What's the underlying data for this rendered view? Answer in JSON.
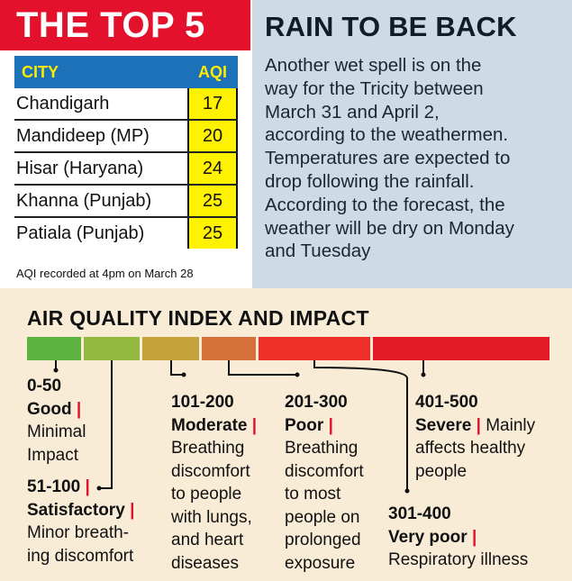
{
  "top5": {
    "title": "THE TOP 5",
    "columns": [
      "CITY",
      "AQI"
    ],
    "rows": [
      {
        "city": "Chandigarh",
        "aqi": "17"
      },
      {
        "city": "Mandideep (MP)",
        "aqi": "20"
      },
      {
        "city": "Hisar (Haryana)",
        "aqi": "24"
      },
      {
        "city": "Khanna (Punjab)",
        "aqi": "25"
      },
      {
        "city": "Patiala (Punjab)",
        "aqi": "25"
      }
    ],
    "note": "AQI recorded at 4pm on March 28"
  },
  "rain": {
    "title": "RAIN TO BE BACK",
    "lines": [
      "Another wet spell is on the",
      "way for the Tricity between",
      "March 31 and April 2,",
      "according to the weathermen.",
      "Temperatures are expected to",
      "drop following the rainfall.",
      "According to the forecast, the",
      "weather will be dry on Monday",
      "and Tuesday"
    ]
  },
  "impact": {
    "title": "AIR QUALITY INDEX AND IMPACT",
    "segment_colors": [
      "#5eb33f",
      "#93b93e",
      "#c5a23a",
      "#d7713a",
      "#ee2e28",
      "#e31a23"
    ],
    "categories": [
      {
        "range": "0-50",
        "name": "Good",
        "sep": "|",
        "desc": [
          "Minimal",
          "Impact"
        ]
      },
      {
        "range": "51-100",
        "name": "Satisfactory",
        "sep": "|",
        "desc": [
          "Minor breath-",
          "ing discomfort"
        ]
      },
      {
        "range": "101-200",
        "name": "Moderate",
        "sep": "|",
        "desc": [
          "Breathing",
          "discomfort",
          "to people",
          "with lungs,",
          "and heart",
          "diseases"
        ]
      },
      {
        "range": "201-300",
        "name": "Poor",
        "sep": "|",
        "desc": [
          "Breathing",
          "discomfort",
          "to most",
          "people on",
          "prolonged",
          "exposure"
        ]
      },
      {
        "range": "301-400",
        "name": "Very poor",
        "sep": "|",
        "desc": [
          "Respiratory illness"
        ]
      },
      {
        "range": "401-500",
        "name": "Severe",
        "sep": "|",
        "desc_inline": "Mainly",
        "desc": [
          "affects healthy",
          "people"
        ]
      }
    ],
    "colors": {
      "separator": "#e3112b"
    }
  }
}
